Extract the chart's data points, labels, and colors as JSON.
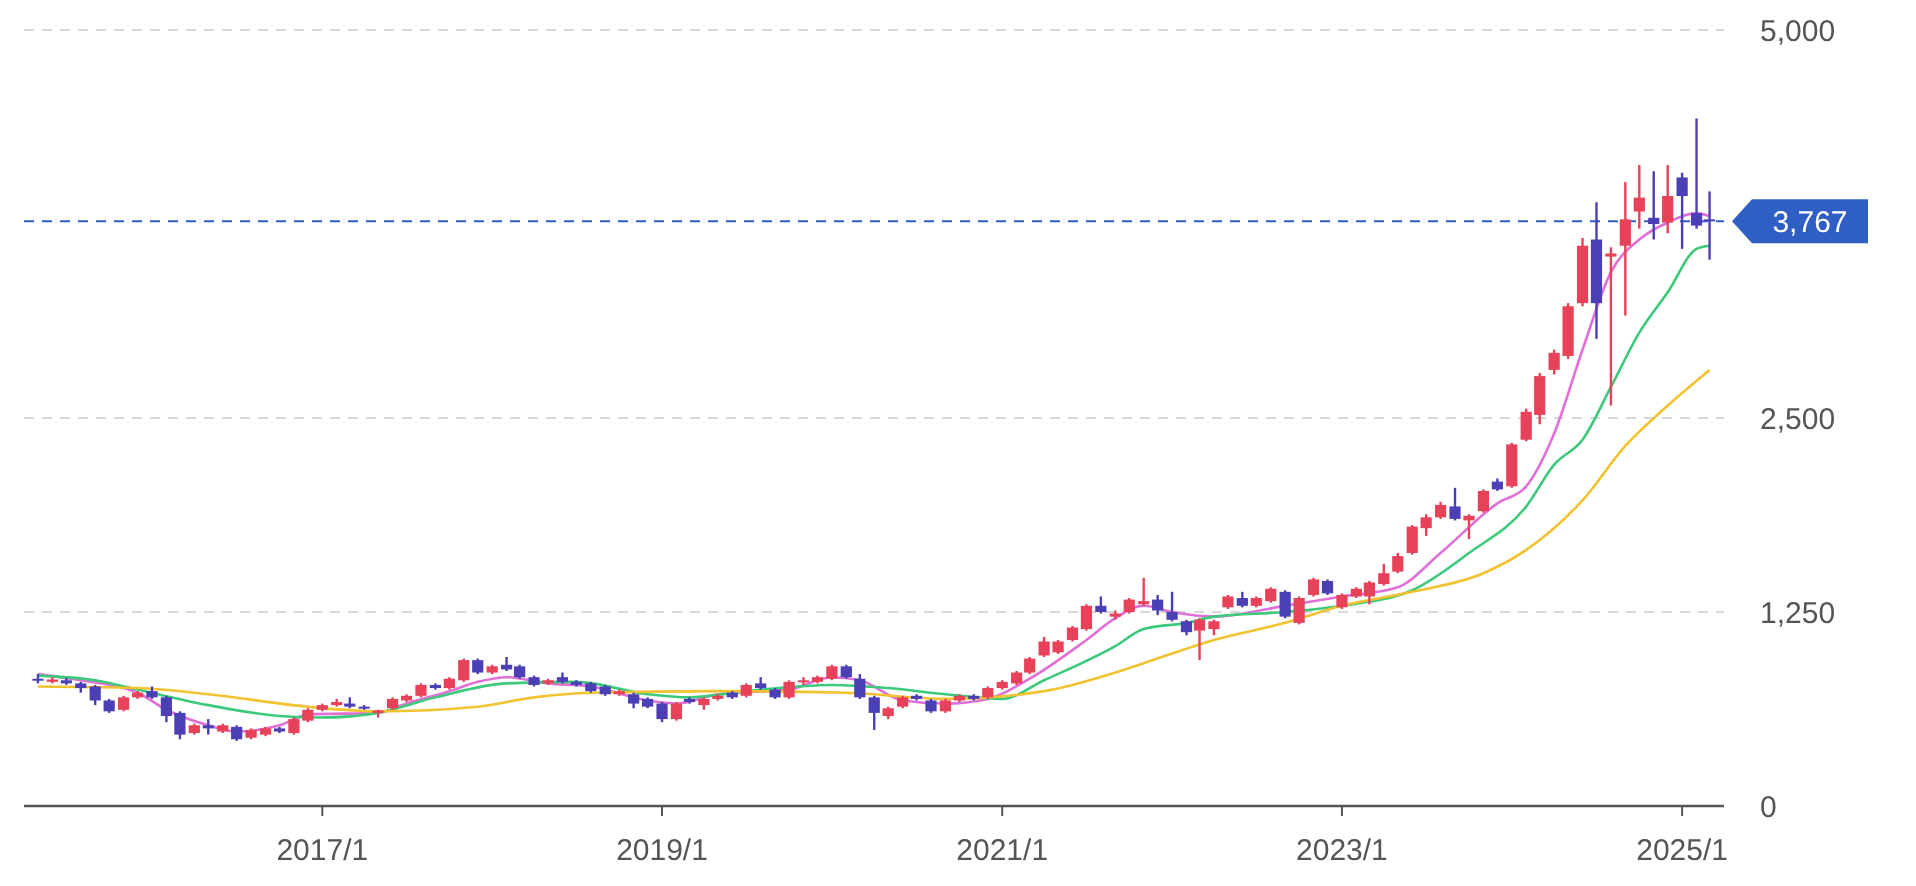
{
  "chart_data": {
    "type": "candlestick",
    "x": [
      "2015-05",
      "2015-06",
      "2015-07",
      "2015-08",
      "2015-09",
      "2015-10",
      "2015-11",
      "2015-12",
      "2016-01",
      "2016-02",
      "2016-03",
      "2016-04",
      "2016-05",
      "2016-06",
      "2016-07",
      "2016-08",
      "2016-09",
      "2016-10",
      "2016-11",
      "2016-12",
      "2017-01",
      "2017-02",
      "2017-03",
      "2017-04",
      "2017-05",
      "2017-06",
      "2017-07",
      "2017-08",
      "2017-09",
      "2017-10",
      "2017-11",
      "2017-12",
      "2018-01",
      "2018-02",
      "2018-03",
      "2018-04",
      "2018-05",
      "2018-06",
      "2018-07",
      "2018-08",
      "2018-09",
      "2018-10",
      "2018-11",
      "2018-12",
      "2019-01",
      "2019-02",
      "2019-03",
      "2019-04",
      "2019-05",
      "2019-06",
      "2019-07",
      "2019-08",
      "2019-09",
      "2019-10",
      "2019-11",
      "2019-12",
      "2020-01",
      "2020-02",
      "2020-03",
      "2020-04",
      "2020-05",
      "2020-06",
      "2020-07",
      "2020-08",
      "2020-09",
      "2020-10",
      "2020-11",
      "2020-12",
      "2021-01",
      "2021-02",
      "2021-03",
      "2021-04",
      "2021-05",
      "2021-06",
      "2021-07",
      "2021-08",
      "2021-09",
      "2021-10",
      "2021-11",
      "2021-12",
      "2022-01",
      "2022-02",
      "2022-03",
      "2022-04",
      "2022-05",
      "2022-06",
      "2022-07",
      "2022-08",
      "2022-09",
      "2022-10",
      "2022-11",
      "2022-12",
      "2023-01",
      "2023-02",
      "2023-03",
      "2023-04",
      "2023-05",
      "2023-06",
      "2023-07",
      "2023-08",
      "2023-09",
      "2023-10",
      "2023-11",
      "2023-12",
      "2024-01",
      "2024-02",
      "2024-03",
      "2024-04",
      "2024-05",
      "2024-06",
      "2024-07",
      "2024-08",
      "2024-09",
      "2024-10",
      "2024-11",
      "2024-12",
      "2025-01",
      "2025-02",
      "2025-03"
    ],
    "ohlc": [
      [
        820,
        850,
        790,
        810
      ],
      [
        800,
        830,
        790,
        815
      ],
      [
        810,
        825,
        780,
        790
      ],
      [
        790,
        800,
        730,
        760
      ],
      [
        770,
        780,
        650,
        680
      ],
      [
        680,
        690,
        600,
        610
      ],
      [
        620,
        710,
        610,
        700
      ],
      [
        700,
        740,
        690,
        730
      ],
      [
        740,
        770,
        690,
        700
      ],
      [
        700,
        710,
        540,
        580
      ],
      [
        600,
        610,
        430,
        460
      ],
      [
        470,
        530,
        460,
        520
      ],
      [
        520,
        560,
        460,
        500
      ],
      [
        480,
        530,
        470,
        520
      ],
      [
        510,
        520,
        420,
        430
      ],
      [
        440,
        500,
        430,
        490
      ],
      [
        460,
        510,
        450,
        500
      ],
      [
        500,
        510,
        470,
        480
      ],
      [
        470,
        570,
        460,
        560
      ],
      [
        550,
        630,
        540,
        620
      ],
      [
        620,
        660,
        610,
        650
      ],
      [
        650,
        690,
        640,
        670
      ],
      [
        660,
        700,
        630,
        640
      ],
      [
        640,
        650,
        620,
        630
      ],
      [
        600,
        620,
        570,
        615
      ],
      [
        630,
        700,
        620,
        690
      ],
      [
        680,
        720,
        670,
        710
      ],
      [
        710,
        790,
        700,
        780
      ],
      [
        780,
        790,
        750,
        760
      ],
      [
        760,
        830,
        750,
        820
      ],
      [
        810,
        950,
        800,
        940
      ],
      [
        940,
        950,
        850,
        860
      ],
      [
        860,
        910,
        850,
        900
      ],
      [
        910,
        960,
        870,
        880
      ],
      [
        900,
        910,
        820,
        830
      ],
      [
        830,
        840,
        770,
        780
      ],
      [
        790,
        820,
        780,
        810
      ],
      [
        830,
        860,
        790,
        800
      ],
      [
        800,
        810,
        770,
        780
      ],
      [
        790,
        800,
        730,
        740
      ],
      [
        770,
        780,
        710,
        720
      ],
      [
        720,
        750,
        710,
        740
      ],
      [
        720,
        730,
        630,
        660
      ],
      [
        690,
        700,
        630,
        640
      ],
      [
        660,
        670,
        540,
        560
      ],
      [
        560,
        670,
        550,
        660
      ],
      [
        690,
        700,
        660,
        670
      ],
      [
        650,
        700,
        620,
        690
      ],
      [
        690,
        720,
        680,
        710
      ],
      [
        730,
        740,
        690,
        700
      ],
      [
        710,
        790,
        700,
        780
      ],
      [
        790,
        830,
        750,
        760
      ],
      [
        750,
        760,
        690,
        700
      ],
      [
        700,
        810,
        690,
        800
      ],
      [
        800,
        830,
        780,
        810
      ],
      [
        800,
        840,
        790,
        830
      ],
      [
        820,
        910,
        810,
        900
      ],
      [
        900,
        910,
        820,
        830
      ],
      [
        820,
        850,
        690,
        700
      ],
      [
        700,
        710,
        490,
        600
      ],
      [
        580,
        640,
        560,
        630
      ],
      [
        640,
        710,
        630,
        700
      ],
      [
        710,
        720,
        680,
        690
      ],
      [
        680,
        690,
        600,
        610
      ],
      [
        610,
        690,
        600,
        680
      ],
      [
        680,
        720,
        670,
        710
      ],
      [
        710,
        720,
        680,
        690
      ],
      [
        700,
        770,
        690,
        760
      ],
      [
        760,
        810,
        750,
        800
      ],
      [
        790,
        870,
        780,
        860
      ],
      [
        860,
        960,
        850,
        950
      ],
      [
        970,
        1090,
        960,
        1060
      ],
      [
        990,
        1070,
        980,
        1060
      ],
      [
        1070,
        1160,
        1060,
        1150
      ],
      [
        1140,
        1300,
        1130,
        1290
      ],
      [
        1290,
        1350,
        1240,
        1250
      ],
      [
        1220,
        1260,
        1200,
        1240
      ],
      [
        1250,
        1340,
        1240,
        1330
      ],
      [
        1300,
        1470,
        1290,
        1320
      ],
      [
        1330,
        1360,
        1230,
        1260
      ],
      [
        1250,
        1380,
        1190,
        1200
      ],
      [
        1190,
        1200,
        1100,
        1120
      ],
      [
        1130,
        1210,
        940,
        1200
      ],
      [
        1140,
        1200,
        1100,
        1190
      ],
      [
        1280,
        1360,
        1270,
        1350
      ],
      [
        1340,
        1380,
        1280,
        1290
      ],
      [
        1290,
        1350,
        1280,
        1340
      ],
      [
        1320,
        1410,
        1310,
        1400
      ],
      [
        1380,
        1390,
        1210,
        1220
      ],
      [
        1180,
        1350,
        1170,
        1340
      ],
      [
        1360,
        1470,
        1350,
        1460
      ],
      [
        1450,
        1460,
        1360,
        1370
      ],
      [
        1280,
        1370,
        1270,
        1360
      ],
      [
        1350,
        1410,
        1340,
        1400
      ],
      [
        1350,
        1450,
        1300,
        1440
      ],
      [
        1430,
        1560,
        1420,
        1500
      ],
      [
        1510,
        1630,
        1500,
        1610
      ],
      [
        1630,
        1810,
        1620,
        1800
      ],
      [
        1790,
        1880,
        1740,
        1860
      ],
      [
        1860,
        1960,
        1850,
        1940
      ],
      [
        1930,
        2050,
        1840,
        1850
      ],
      [
        1840,
        1880,
        1720,
        1870
      ],
      [
        1900,
        2040,
        1890,
        2030
      ],
      [
        2090,
        2110,
        2030,
        2040
      ],
      [
        2060,
        2340,
        2050,
        2330
      ],
      [
        2360,
        2560,
        2350,
        2540
      ],
      [
        2520,
        2790,
        2460,
        2770
      ],
      [
        2810,
        2940,
        2780,
        2920
      ],
      [
        2900,
        3240,
        2880,
        3220
      ],
      [
        3240,
        3660,
        3220,
        3610
      ],
      [
        3650,
        3890,
        3010,
        3240
      ],
      [
        3540,
        3600,
        2580,
        3560
      ],
      [
        3610,
        4020,
        3160,
        3780
      ],
      [
        3830,
        4130,
        3720,
        3920
      ],
      [
        3790,
        4090,
        3650,
        3750
      ],
      [
        3760,
        4130,
        3690,
        3930
      ],
      [
        4050,
        4080,
        3590,
        3930
      ],
      [
        3820,
        4430,
        3720,
        3740
      ],
      [
        3780,
        3960,
        3520,
        3767
      ]
    ],
    "colors": [
      "#4b3fb5",
      "#e8415a",
      "#4b3fb5",
      "#4b3fb5",
      "#4b3fb5",
      "#4b3fb5",
      "#e8415a",
      "#e8415a",
      "#4b3fb5",
      "#4b3fb5",
      "#4b3fb5",
      "#e8415a",
      "#4b3fb5",
      "#e8415a",
      "#4b3fb5",
      "#e8415a",
      "#e8415a",
      "#4b3fb5",
      "#e8415a",
      "#e8415a",
      "#e8415a",
      "#e8415a",
      "#4b3fb5",
      "#4b3fb5",
      "#e8415a",
      "#e8415a",
      "#e8415a",
      "#e8415a",
      "#4b3fb5",
      "#e8415a",
      "#e8415a",
      "#4b3fb5",
      "#e8415a",
      "#4b3fb5",
      "#4b3fb5",
      "#4b3fb5",
      "#e8415a",
      "#4b3fb5",
      "#4b3fb5",
      "#4b3fb5",
      "#4b3fb5",
      "#e8415a",
      "#4b3fb5",
      "#4b3fb5",
      "#4b3fb5",
      "#e8415a",
      "#4b3fb5",
      "#e8415a",
      "#e8415a",
      "#4b3fb5",
      "#e8415a",
      "#4b3fb5",
      "#4b3fb5",
      "#e8415a",
      "#e8415a",
      "#e8415a",
      "#e8415a",
      "#4b3fb5",
      "#4b3fb5",
      "#4b3fb5",
      "#e8415a",
      "#e8415a",
      "#4b3fb5",
      "#4b3fb5",
      "#e8415a",
      "#e8415a",
      "#4b3fb5",
      "#e8415a",
      "#e8415a",
      "#e8415a",
      "#e8415a",
      "#e8415a",
      "#e8415a",
      "#e8415a",
      "#e8415a",
      "#4b3fb5",
      "#e8415a",
      "#e8415a",
      "#e8415a",
      "#4b3fb5",
      "#4b3fb5",
      "#4b3fb5",
      "#e8415a",
      "#e8415a",
      "#e8415a",
      "#4b3fb5",
      "#e8415a",
      "#e8415a",
      "#4b3fb5",
      "#e8415a",
      "#e8415a",
      "#4b3fb5",
      "#e8415a",
      "#e8415a",
      "#e8415a",
      "#e8415a",
      "#e8415a",
      "#e8415a",
      "#e8415a",
      "#e8415a",
      "#4b3fb5",
      "#e8415a",
      "#e8415a",
      "#4b3fb5",
      "#e8415a",
      "#e8415a",
      "#e8415a",
      "#e8415a",
      "#e8415a",
      "#e8415a",
      "#4b3fb5",
      "#e8415a",
      "#e8415a",
      "#e8415a",
      "#4b3fb5",
      "#e8415a",
      "#4b3fb5",
      "#4b3fb5",
      "#4b3fb5"
    ],
    "series": [
      {
        "type": "line",
        "color": "#e070d8",
        "x": [
          "2015-05",
          "2015-08",
          "2015-12",
          "2016-02",
          "2016-05",
          "2016-07",
          "2016-10",
          "2016-12",
          "2017-05",
          "2017-07",
          "2017-10",
          "2017-12",
          "2018-02",
          "2018-05",
          "2018-08",
          "2018-12",
          "2019-02",
          "2019-05",
          "2019-10",
          "2020-01",
          "2020-03",
          "2020-06",
          "2020-09",
          "2020-12",
          "2021-03",
          "2021-07",
          "2021-09",
          "2021-11",
          "2022-01",
          "2022-04",
          "2022-09",
          "2023-01",
          "2023-05",
          "2023-08",
          "2023-12",
          "2024-02",
          "2024-04",
          "2024-06",
          "2024-08",
          "2024-10",
          "2024-12",
          "2025-02",
          "2025-03"
        ],
        "values": [
          850,
          810,
          730,
          620,
          520,
          480,
          520,
          590,
          600,
          660,
          740,
          800,
          830,
          790,
          770,
          680,
          660,
          720,
          750,
          830,
          810,
          680,
          660,
          690,
          820,
          1070,
          1210,
          1290,
          1250,
          1220,
          1290,
          1350,
          1410,
          1630,
          1950,
          2060,
          2400,
          2940,
          3440,
          3650,
          3760,
          3820,
          3800
        ]
      },
      {
        "type": "line",
        "color": "#3cc97a",
        "x": [
          "2015-05",
          "2015-09",
          "2015-12",
          "2016-05",
          "2016-10",
          "2017-01",
          "2017-05",
          "2017-09",
          "2018-02",
          "2018-07",
          "2018-12",
          "2019-03",
          "2019-07",
          "2020-01",
          "2020-05",
          "2020-09",
          "2021-01",
          "2021-04",
          "2021-09",
          "2021-11",
          "2022-02",
          "2022-04",
          "2022-09",
          "2023-01",
          "2023-06",
          "2023-10",
          "2024-02",
          "2024-04",
          "2024-06",
          "2024-08",
          "2024-10",
          "2024-12",
          "2025-02",
          "2025-03"
        ],
        "values": [
          840,
          810,
          750,
          650,
          580,
          570,
          600,
          700,
          790,
          800,
          720,
          700,
          740,
          780,
          760,
          720,
          690,
          810,
          1030,
          1140,
          1180,
          1220,
          1250,
          1290,
          1390,
          1630,
          1930,
          2200,
          2360,
          2700,
          3050,
          3310,
          3590,
          3610
        ]
      },
      {
        "type": "line",
        "color": "#f2c230",
        "x": [
          "2015-05",
          "2015-12",
          "2016-05",
          "2016-12",
          "2017-05",
          "2017-12",
          "2018-04",
          "2018-08",
          "2019-05",
          "2020-02",
          "2020-09",
          "2021-04",
          "2021-09",
          "2021-11",
          "2022-04",
          "2022-09",
          "2023-01",
          "2023-06",
          "2023-11",
          "2024-02",
          "2024-06",
          "2024-09",
          "2024-12",
          "2025-03"
        ],
        "values": [
          770,
          760,
          720,
          640,
          610,
          640,
          700,
          730,
          740,
          730,
          690,
          740,
          860,
          920,
          1070,
          1180,
          1290,
          1380,
          1500,
          1650,
          1970,
          2320,
          2580,
          2810
        ]
      }
    ],
    "xlim": [
      "2015-04",
      "2025-04"
    ],
    "xticks": [
      {
        "value": "2017-01",
        "label": "2017/1"
      },
      {
        "value": "2019-01",
        "label": "2019/1"
      },
      {
        "value": "2021-01",
        "label": "2021/1"
      },
      {
        "value": "2023-01",
        "label": "2023/1"
      },
      {
        "value": "2025-01",
        "label": "2025/1"
      }
    ],
    "ylim": [
      0,
      5000
    ],
    "yticks": [
      {
        "value": 0,
        "label": "0"
      },
      {
        "value": 1250,
        "label": "1,250"
      },
      {
        "value": 2500,
        "label": "2,500"
      },
      {
        "value": 5000,
        "label": "5,000"
      }
    ],
    "grid": "y",
    "ref_lines": [
      {
        "axis": "y",
        "value": 3767,
        "label": "3,767",
        "color": "#2f5fc4",
        "line_style": "dashed"
      }
    ]
  }
}
